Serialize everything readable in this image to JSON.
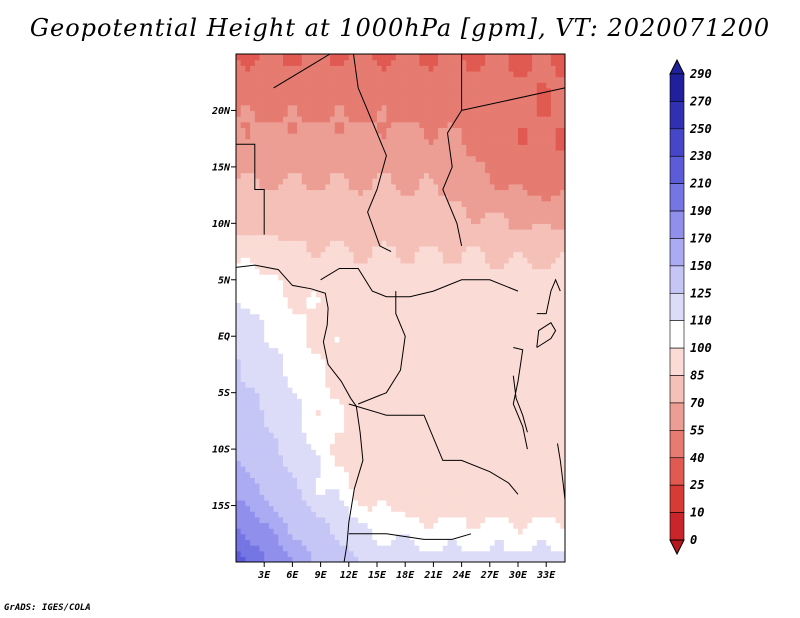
{
  "chart_data": {
    "type": "heatmap",
    "title": "Geopotential Height at 1000hPa [gpm], VT: 2020071200",
    "variable": "Geopotential Height",
    "level": "1000hPa",
    "units": "gpm",
    "valid_time": "2020071200",
    "x_ticks": [
      "3E",
      "6E",
      "9E",
      "12E",
      "15E",
      "18E",
      "21E",
      "24E",
      "27E",
      "30E",
      "33E"
    ],
    "x_tick_values": [
      3,
      6,
      9,
      12,
      15,
      18,
      21,
      24,
      27,
      30,
      33
    ],
    "y_ticks": [
      "20N",
      "15N",
      "10N",
      "5N",
      "EQ",
      "5S",
      "10S",
      "15S"
    ],
    "y_tick_values": [
      20,
      15,
      10,
      5,
      0,
      -5,
      -10,
      -15
    ],
    "xlim": [
      0,
      35
    ],
    "ylim": [
      -20,
      25
    ],
    "colorbar": {
      "levels": [
        0,
        10,
        25,
        40,
        55,
        70,
        85,
        100,
        110,
        125,
        150,
        170,
        190,
        210,
        230,
        250,
        270,
        290
      ],
      "labels": [
        "0",
        "10",
        "25",
        "40",
        "55",
        "70",
        "85",
        "100",
        "110",
        "125",
        "150",
        "170",
        "190",
        "210",
        "230",
        "250",
        "270",
        "290"
      ],
      "colors": [
        "#b4181e",
        "#c9252a",
        "#d83b36",
        "#e05a52",
        "#e57b71",
        "#ed9e94",
        "#f4c0b7",
        "#fadbd5",
        "#ffffff",
        "#dcdcf9",
        "#c5c5f6",
        "#ababf3",
        "#9090ec",
        "#7575e3",
        "#5c5cd8",
        "#4646c8",
        "#3030b3",
        "#20209c"
      ]
    },
    "field_description": "Lowest heights (25-55 gpm) over Sudan/Chad/Libya; moderate (70-100) over central Africa; near 100-125 over the Gulf of Guinea and Atlantic; highest (150-190) in the southwest Atlantic corner."
  },
  "footer": {
    "credit": "GrADS: IGES/COLA"
  }
}
